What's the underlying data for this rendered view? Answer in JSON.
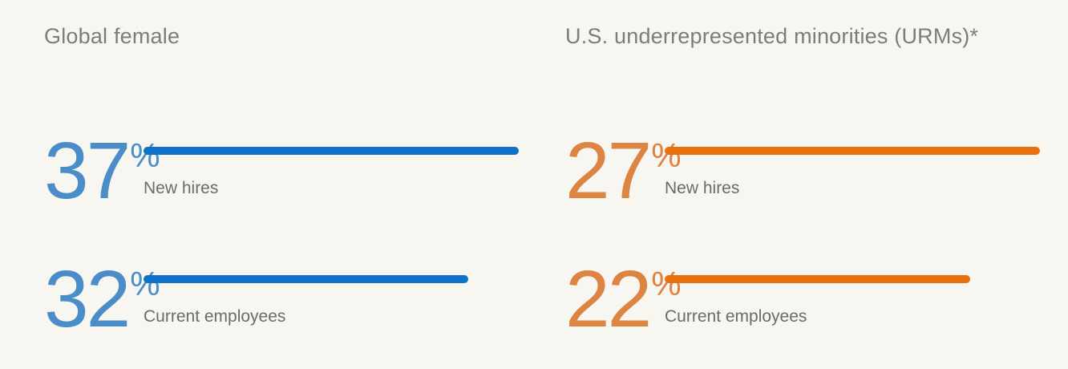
{
  "page": {
    "background": "#f7f6f1"
  },
  "chart_data": [
    {
      "type": "bar",
      "orientation": "horizontal",
      "title": "Global female",
      "unit": "%",
      "bar_color": "#0e72c8",
      "value_color": "#4a8dc8",
      "categories": [
        "New hires",
        "Current employees"
      ],
      "values": [
        37,
        32
      ],
      "value_range": [
        0,
        37
      ],
      "grid": false,
      "legend": "none"
    },
    {
      "type": "bar",
      "orientation": "horizontal",
      "title": "U.S. underrepresented minorities (URMs)*",
      "unit": "%",
      "bar_color": "#e8700e",
      "value_color": "#dd8443",
      "categories": [
        "New hires",
        "Current employees"
      ],
      "values": [
        27,
        22
      ],
      "value_range": [
        0,
        27
      ],
      "grid": false,
      "legend": "none"
    }
  ]
}
